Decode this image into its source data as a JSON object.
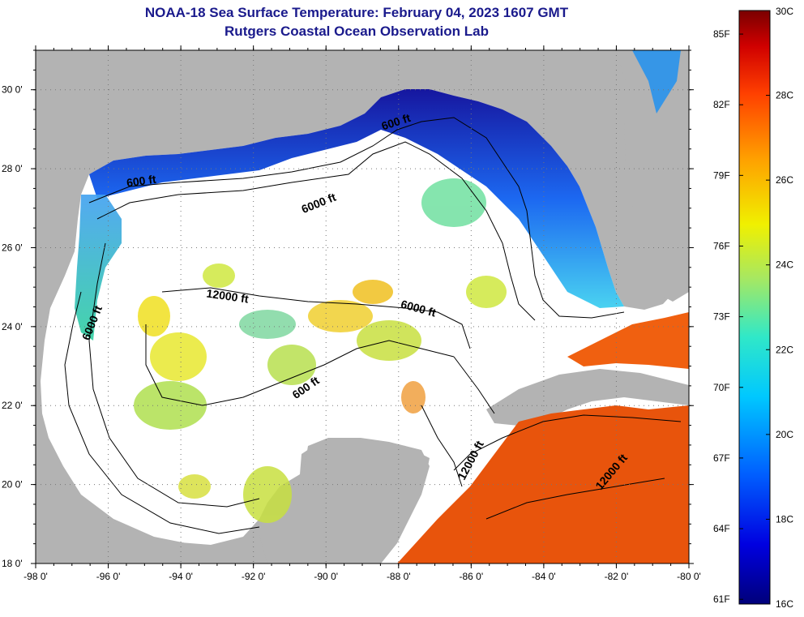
{
  "header": {
    "title": "NOAA-18 Sea Surface Temperature:  February 04, 2023 1607 GMT",
    "subtitle": "Rutgers Coastal Ocean Observation Lab"
  },
  "map": {
    "lat_ticks": [
      "18 0'",
      "20 0'",
      "22 0'",
      "24 0'",
      "26 0'",
      "28 0'",
      "30 0'"
    ],
    "lon_ticks": [
      "-98 0'",
      "-96 0'",
      "-94 0'",
      "-92 0'",
      "-90 0'",
      "-88 0'",
      "-86 0'",
      "-84 0'",
      "-82 0'",
      "-80 0'"
    ],
    "lat_range": [
      18,
      31
    ],
    "lon_range": [
      -98,
      -80
    ],
    "contour_labels": [
      "600 ft",
      "600 ft",
      "6000 ft",
      "12000 ft",
      "6000 ft",
      "6000 ft",
      "600 ft",
      "12000 ft",
      "12000 ft"
    ],
    "colors": {
      "land": "#b3b3b3",
      "no_data": "#ffffff",
      "cold": "#0a0ab4",
      "warm": "#e8540c"
    }
  },
  "colorbar": {
    "fahrenheit": [
      "85F",
      "82F",
      "79F",
      "76F",
      "73F",
      "70F",
      "67F",
      "64F",
      "61F"
    ],
    "celsius": [
      "30C",
      "28C",
      "26C",
      "24C",
      "22C",
      "20C",
      "18C",
      "16C"
    ],
    "range_c": [
      16,
      30
    ]
  }
}
